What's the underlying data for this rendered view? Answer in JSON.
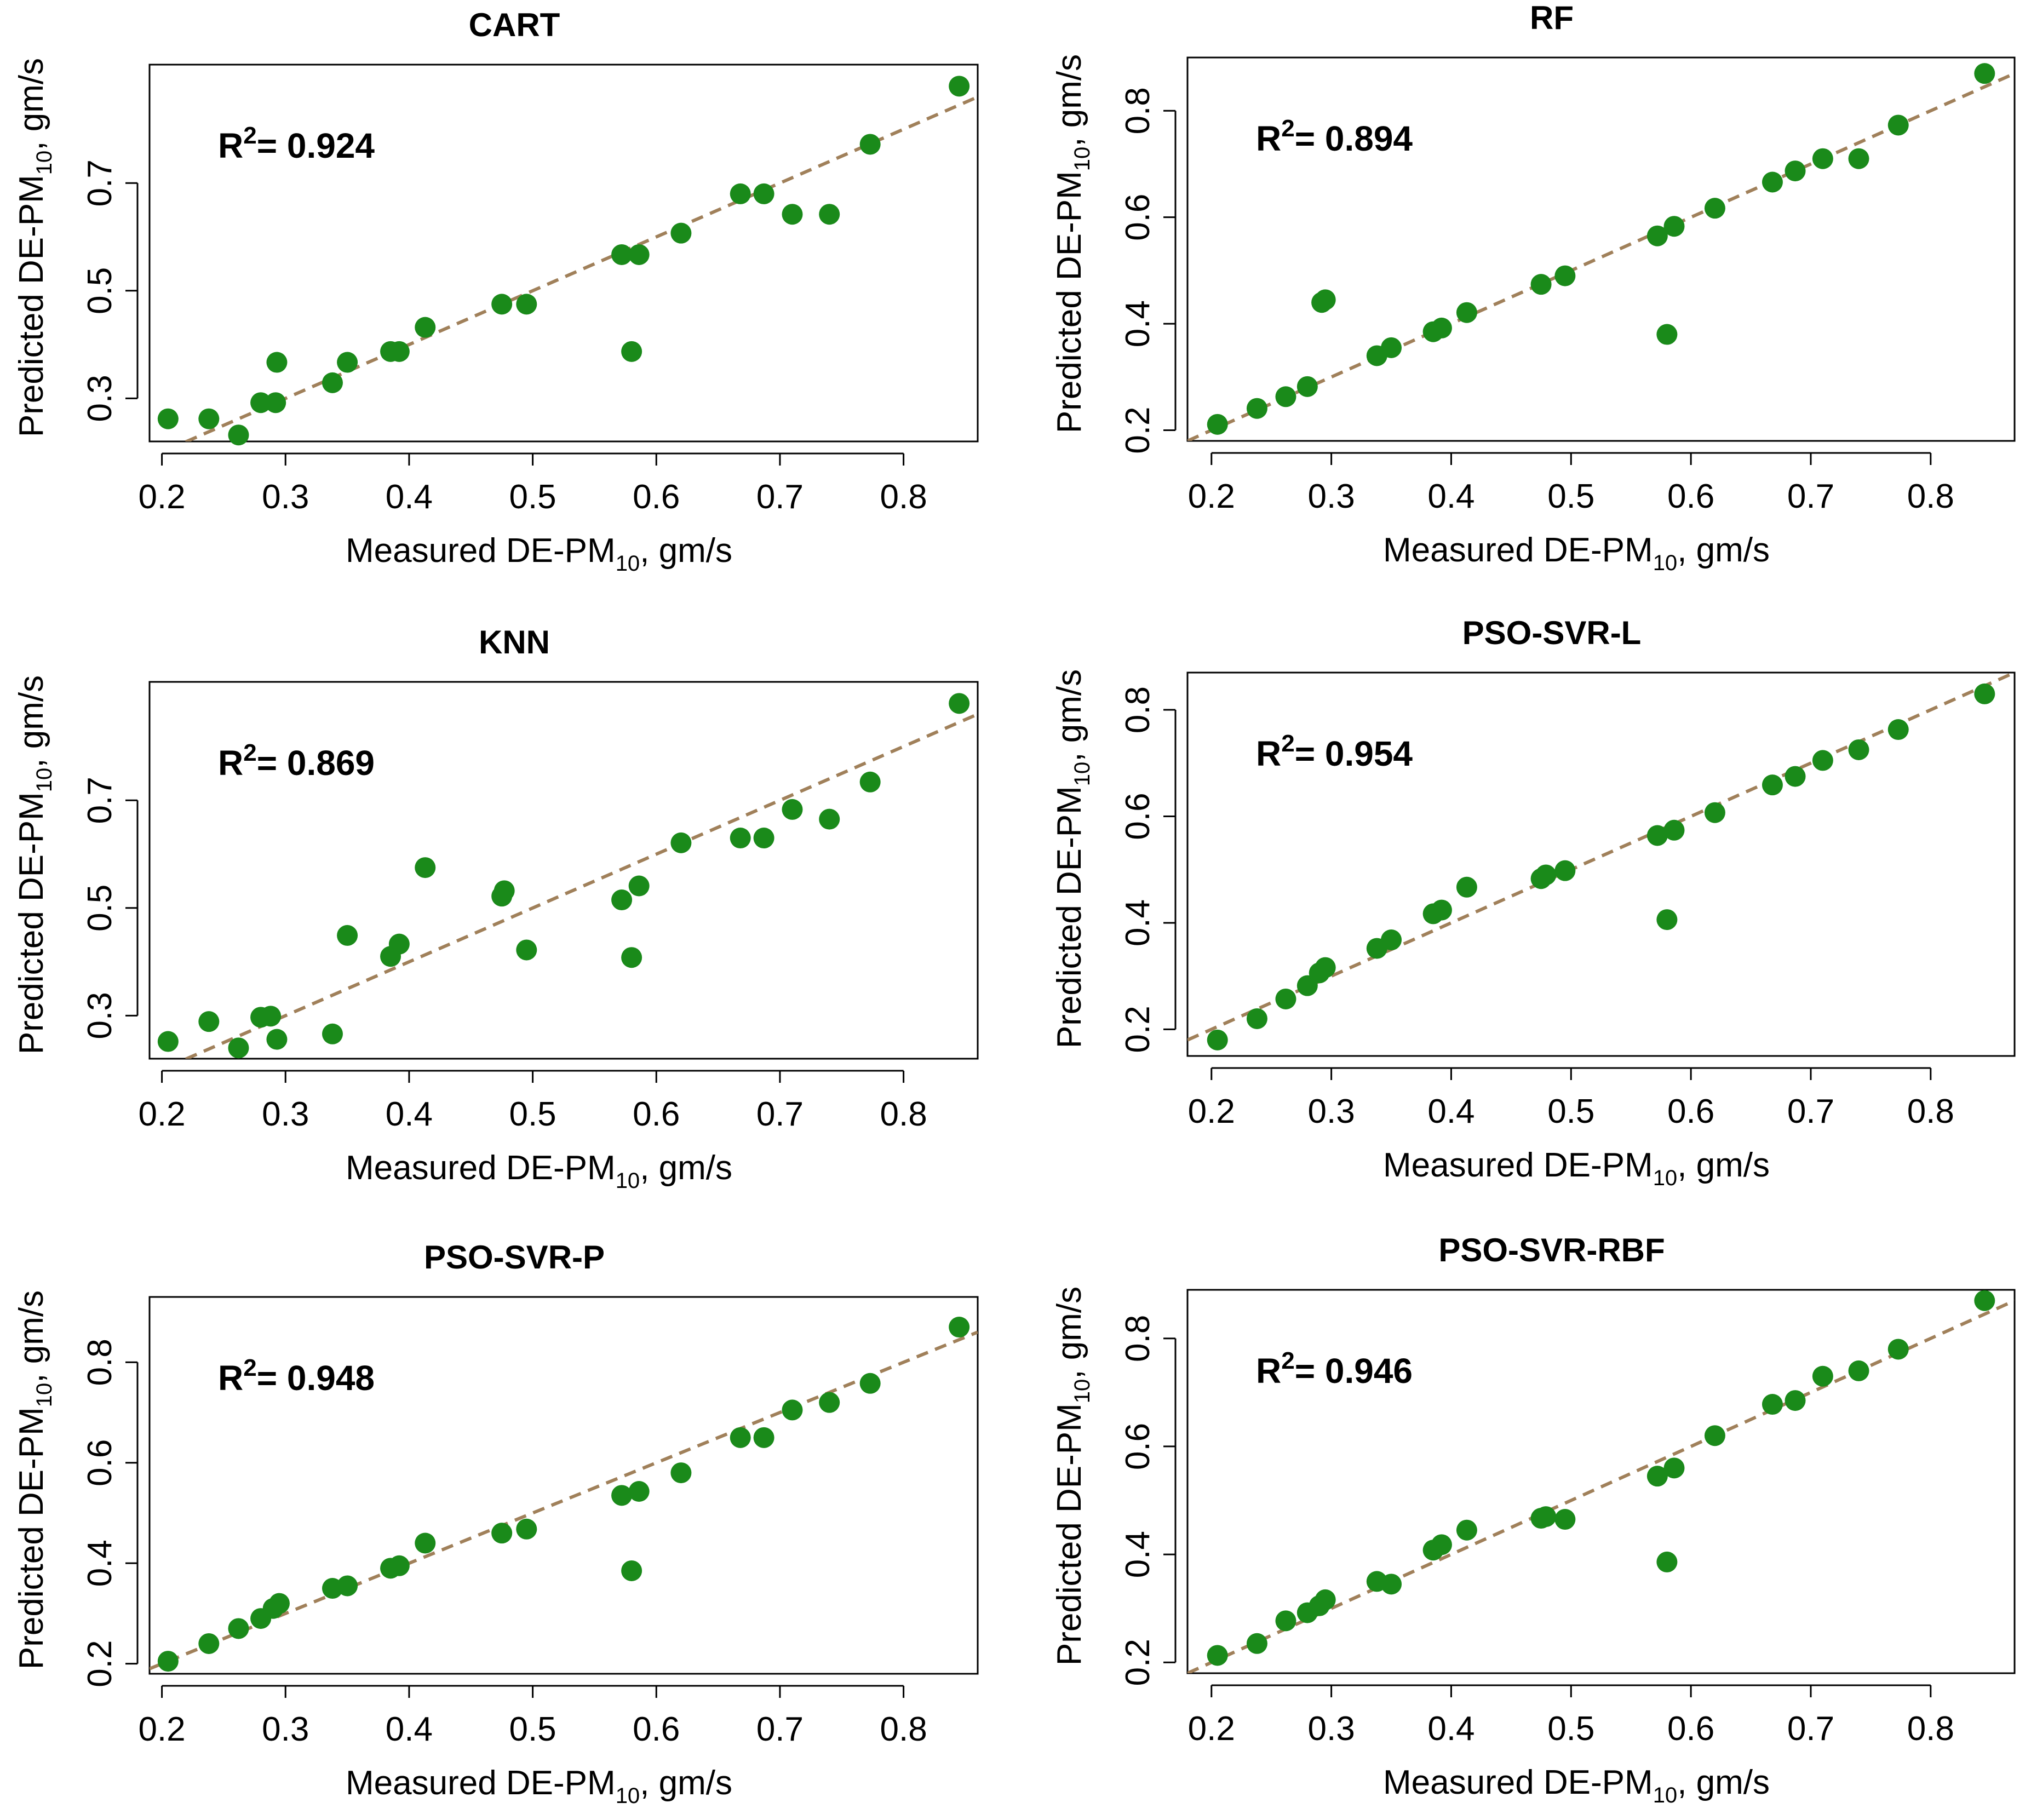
{
  "figure": {
    "point_color": "#1a8a1a",
    "fit_line_color": "#a0805a"
  },
  "chart_data": [
    {
      "type": "scatter",
      "title": "CART",
      "xlabel": {
        "main": "Measured DE-PM",
        "sub": "10",
        "tail": ", gm/s"
      },
      "ylabel": {
        "main": "Predicted DE-PM",
        "sub": "10",
        "tail": ", gm/s"
      },
      "annotation": {
        "prefix": "R",
        "sup": "2",
        "text": "= 0.924"
      },
      "xlim": [
        0.19,
        0.86
      ],
      "ylim": [
        0.22,
        0.92
      ],
      "xticks": [
        0.2,
        0.3,
        0.4,
        0.5,
        0.6,
        0.7,
        0.8
      ],
      "yticks": [
        0.3,
        0.5,
        0.7
      ],
      "fit_line": {
        "slope": 1.0,
        "intercept": 0.0
      },
      "x": [
        0.205,
        0.238,
        0.262,
        0.28,
        0.292,
        0.293,
        0.338,
        0.35,
        0.385,
        0.392,
        0.413,
        0.475,
        0.495,
        0.572,
        0.58,
        0.586,
        0.62,
        0.668,
        0.687,
        0.71,
        0.74,
        0.773,
        0.845
      ],
      "y": [
        0.262,
        0.262,
        0.232,
        0.292,
        0.292,
        0.367,
        0.329,
        0.367,
        0.387,
        0.387,
        0.432,
        0.475,
        0.475,
        0.567,
        0.387,
        0.567,
        0.607,
        0.68,
        0.68,
        0.642,
        0.642,
        0.772,
        0.88
      ]
    },
    {
      "type": "scatter",
      "title": "RF",
      "xlabel": {
        "main": "Measured DE-PM",
        "sub": "10",
        "tail": ", gm/s"
      },
      "ylabel": {
        "main": "Predicted DE-PM",
        "sub": "10",
        "tail": ", gm/s"
      },
      "annotation": {
        "prefix": "R",
        "sup": "2",
        "text": "= 0.894"
      },
      "xlim": [
        0.18,
        0.87
      ],
      "ylim": [
        0.18,
        0.9
      ],
      "xticks": [
        0.2,
        0.3,
        0.4,
        0.5,
        0.6,
        0.7,
        0.8
      ],
      "yticks": [
        0.2,
        0.4,
        0.6,
        0.8
      ],
      "fit_line": {
        "slope": 1.0,
        "intercept": 0.0
      },
      "x": [
        0.205,
        0.238,
        0.262,
        0.28,
        0.292,
        0.295,
        0.338,
        0.35,
        0.385,
        0.392,
        0.413,
        0.475,
        0.495,
        0.572,
        0.58,
        0.586,
        0.62,
        0.668,
        0.687,
        0.71,
        0.74,
        0.773,
        0.845
      ],
      "y": [
        0.211,
        0.241,
        0.263,
        0.282,
        0.44,
        0.445,
        0.34,
        0.355,
        0.385,
        0.392,
        0.421,
        0.474,
        0.49,
        0.565,
        0.38,
        0.583,
        0.617,
        0.666,
        0.687,
        0.71,
        0.71,
        0.773,
        0.87
      ]
    },
    {
      "type": "scatter",
      "title": "KNN",
      "xlabel": {
        "main": "Measured DE-PM",
        "sub": "10",
        "tail": ", gm/s"
      },
      "ylabel": {
        "main": "Predicted DE-PM",
        "sub": "10",
        "tail": ", gm/s"
      },
      "annotation": {
        "prefix": "R",
        "sup": "2",
        "text": "= 0.869"
      },
      "xlim": [
        0.19,
        0.86
      ],
      "ylim": [
        0.22,
        0.92
      ],
      "xticks": [
        0.2,
        0.3,
        0.4,
        0.5,
        0.6,
        0.7,
        0.8
      ],
      "yticks": [
        0.3,
        0.5,
        0.7
      ],
      "fit_line": {
        "slope": 1.0,
        "intercept": 0.0
      },
      "x": [
        0.205,
        0.238,
        0.262,
        0.28,
        0.288,
        0.293,
        0.338,
        0.35,
        0.385,
        0.392,
        0.413,
        0.475,
        0.477,
        0.495,
        0.572,
        0.58,
        0.586,
        0.62,
        0.668,
        0.687,
        0.71,
        0.74,
        0.773,
        0.845
      ],
      "y": [
        0.252,
        0.289,
        0.24,
        0.297,
        0.299,
        0.256,
        0.266,
        0.449,
        0.41,
        0.433,
        0.575,
        0.522,
        0.532,
        0.422,
        0.515,
        0.408,
        0.541,
        0.621,
        0.63,
        0.63,
        0.683,
        0.665,
        0.734,
        0.88
      ]
    },
    {
      "type": "scatter",
      "title": "PSO-SVR-L",
      "xlabel": {
        "main": "Measured DE-PM",
        "sub": "10",
        "tail": ", gm/s"
      },
      "ylabel": {
        "main": "Predicted DE-PM",
        "sub": "10",
        "tail": ", gm/s"
      },
      "annotation": {
        "prefix": "R",
        "sup": "2",
        "text": "= 0.954"
      },
      "xlim": [
        0.18,
        0.87
      ],
      "ylim": [
        0.15,
        0.87
      ],
      "xticks": [
        0.2,
        0.3,
        0.4,
        0.5,
        0.6,
        0.7,
        0.8
      ],
      "yticks": [
        0.2,
        0.4,
        0.6,
        0.8
      ],
      "fit_line": {
        "slope": 1.0,
        "intercept": 0.0
      },
      "x": [
        0.205,
        0.238,
        0.262,
        0.28,
        0.29,
        0.295,
        0.338,
        0.35,
        0.385,
        0.392,
        0.413,
        0.475,
        0.479,
        0.495,
        0.572,
        0.58,
        0.586,
        0.62,
        0.668,
        0.687,
        0.71,
        0.74,
        0.773,
        0.845
      ],
      "y": [
        0.18,
        0.22,
        0.257,
        0.282,
        0.306,
        0.316,
        0.352,
        0.368,
        0.417,
        0.424,
        0.467,
        0.483,
        0.49,
        0.498,
        0.564,
        0.406,
        0.574,
        0.607,
        0.659,
        0.675,
        0.705,
        0.725,
        0.763,
        0.83
      ]
    },
    {
      "type": "scatter",
      "title": "PSO-SVR-P",
      "xlabel": {
        "main": "Measured DE-PM",
        "sub": "10",
        "tail": ", gm/s"
      },
      "ylabel": {
        "main": "Predicted DE-PM",
        "sub": "10",
        "tail": ", gm/s"
      },
      "annotation": {
        "prefix": "R",
        "sup": "2",
        "text": "= 0.948"
      },
      "xlim": [
        0.19,
        0.86
      ],
      "ylim": [
        0.18,
        0.93
      ],
      "xticks": [
        0.2,
        0.3,
        0.4,
        0.5,
        0.6,
        0.7,
        0.8
      ],
      "yticks": [
        0.2,
        0.4,
        0.6,
        0.8
      ],
      "fit_line": {
        "slope": 1.0,
        "intercept": 0.0
      },
      "x": [
        0.205,
        0.238,
        0.262,
        0.28,
        0.29,
        0.295,
        0.338,
        0.35,
        0.385,
        0.392,
        0.413,
        0.475,
        0.495,
        0.572,
        0.58,
        0.586,
        0.62,
        0.668,
        0.687,
        0.71,
        0.74,
        0.773,
        0.845
      ],
      "y": [
        0.205,
        0.24,
        0.27,
        0.29,
        0.31,
        0.32,
        0.35,
        0.355,
        0.39,
        0.395,
        0.44,
        0.46,
        0.468,
        0.535,
        0.385,
        0.543,
        0.58,
        0.65,
        0.65,
        0.705,
        0.72,
        0.758,
        0.87
      ]
    },
    {
      "type": "scatter",
      "title": "PSO-SVR-RBF",
      "xlabel": {
        "main": "Measured DE-PM",
        "sub": "10",
        "tail": ", gm/s"
      },
      "ylabel": {
        "main": "Predicted DE-PM",
        "sub": "10",
        "tail": ", gm/s"
      },
      "annotation": {
        "prefix": "R",
        "sup": "2",
        "text": "= 0.946"
      },
      "xlim": [
        0.18,
        0.87
      ],
      "ylim": [
        0.18,
        0.89
      ],
      "xticks": [
        0.2,
        0.3,
        0.4,
        0.5,
        0.6,
        0.7,
        0.8
      ],
      "yticks": [
        0.2,
        0.4,
        0.6,
        0.8
      ],
      "fit_line": {
        "slope": 1.0,
        "intercept": 0.0
      },
      "x": [
        0.205,
        0.238,
        0.262,
        0.28,
        0.29,
        0.295,
        0.338,
        0.35,
        0.385,
        0.392,
        0.413,
        0.475,
        0.479,
        0.495,
        0.572,
        0.58,
        0.586,
        0.62,
        0.668,
        0.687,
        0.71,
        0.74,
        0.773,
        0.845
      ],
      "y": [
        0.213,
        0.235,
        0.277,
        0.292,
        0.305,
        0.316,
        0.35,
        0.345,
        0.408,
        0.418,
        0.445,
        0.467,
        0.47,
        0.465,
        0.545,
        0.386,
        0.56,
        0.62,
        0.678,
        0.685,
        0.73,
        0.74,
        0.78,
        0.87
      ]
    }
  ]
}
